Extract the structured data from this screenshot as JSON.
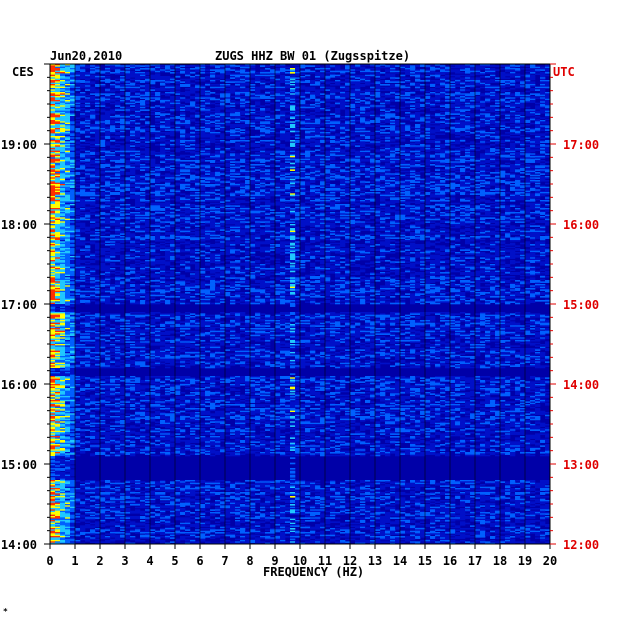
{
  "chart_data": {
    "type": "heatmap",
    "date": "Jun20,2010",
    "title": "ZUGS HHZ BW 01 (Zugsspitze)",
    "xlabel": "FREQUENCY (HZ)",
    "x_ticks": [
      "0",
      "1",
      "2",
      "3",
      "4",
      "5",
      "6",
      "7",
      "8",
      "9",
      "10",
      "11",
      "12",
      "13",
      "14",
      "15",
      "16",
      "17",
      "18",
      "19",
      "20"
    ],
    "xlim": [
      0,
      20
    ],
    "left_axis": {
      "label": "CES",
      "ticks": [
        "19:00",
        "18:00",
        "17:00",
        "16:00",
        "15:00",
        "14:00"
      ],
      "range_hours": [
        14,
        20
      ]
    },
    "right_axis": {
      "label": "UTC",
      "ticks": [
        "17:00",
        "16:00",
        "15:00",
        "14:00",
        "13:00",
        "12:00"
      ],
      "range_hours": [
        12,
        18
      ]
    },
    "colors": {
      "background": "#0000a8",
      "low": "#0010c8",
      "mid": "#0060ff",
      "cyan": "#20c8ff",
      "high": "#ffff00",
      "peak": "#ff3000",
      "right_axis_text": "#e00000"
    },
    "features": {
      "high_energy_band_hz": [
        0,
        1
      ],
      "persistent_line_hz": 9.7,
      "quiet_intervals_ces": [
        [
          "17:00",
          "16:54"
        ],
        [
          "16:12",
          "16:06"
        ],
        [
          "15:06",
          "14:48"
        ]
      ]
    }
  },
  "corner_mark": "*"
}
